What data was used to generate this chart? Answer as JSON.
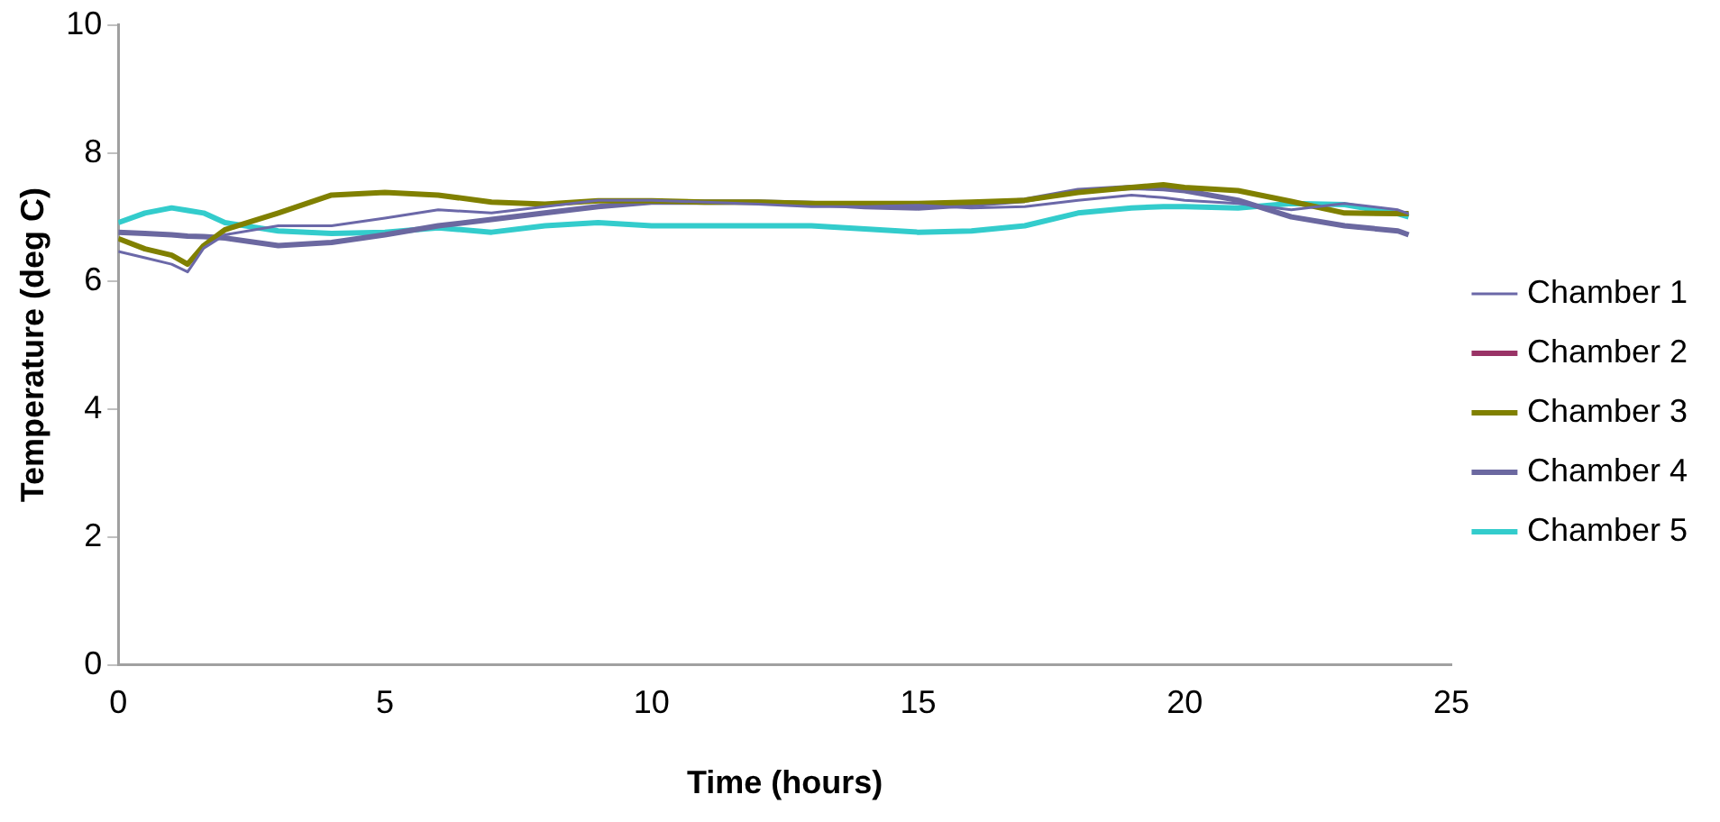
{
  "chart_data": {
    "type": "line",
    "xlabel": "Time (hours)",
    "ylabel": "Temperature (deg C)",
    "xlim": [
      0,
      25
    ],
    "ylim": [
      0,
      10
    ],
    "xticks": [
      0,
      5,
      10,
      15,
      20,
      25
    ],
    "yticks": [
      0,
      2,
      4,
      6,
      8,
      10
    ],
    "grid": false,
    "legend": "right",
    "marker": "none",
    "line_style": "solid",
    "x": [
      0,
      0.5,
      1,
      1.3,
      1.6,
      2,
      3,
      4,
      5,
      6,
      7,
      8,
      9,
      10,
      11,
      12,
      13,
      14,
      15,
      16,
      17,
      18,
      19,
      19.6,
      20,
      21,
      22,
      23,
      24,
      24.2
    ],
    "series": [
      {
        "name": "Chamber 1",
        "color": "#6b68a8",
        "values": [
          6.46,
          6.36,
          6.26,
          6.14,
          6.51,
          6.72,
          6.86,
          6.86,
          6.98,
          7.11,
          7.06,
          7.16,
          7.26,
          7.26,
          7.23,
          7.2,
          7.16,
          7.16,
          7.18,
          7.14,
          7.16,
          7.26,
          7.34,
          7.3,
          7.26,
          7.21,
          7.11,
          7.21,
          7.11,
          7.05
        ]
      },
      {
        "name": "Chamber 2",
        "color": "#993366",
        "values": [
          null,
          null,
          null,
          null,
          null,
          null,
          null,
          null,
          null,
          null,
          null,
          null,
          null,
          null,
          null,
          null,
          null,
          null,
          null,
          null,
          null,
          null,
          null,
          null,
          null,
          null,
          null,
          null,
          null,
          null
        ]
      },
      {
        "name": "Chamber 3",
        "color": "#808000",
        "values": [
          6.66,
          6.5,
          6.4,
          6.26,
          6.55,
          6.8,
          7.06,
          7.34,
          7.38,
          7.34,
          7.23,
          7.2,
          7.25,
          7.25,
          7.23,
          7.23,
          7.21,
          7.21,
          7.21,
          7.23,
          7.26,
          7.38,
          7.46,
          7.5,
          7.46,
          7.41,
          7.24,
          7.06,
          7.05,
          7.05
        ]
      },
      {
        "name": "Chamber 4",
        "color": "#6b68a0",
        "values": [
          6.76,
          6.74,
          6.72,
          6.7,
          6.69,
          6.67,
          6.55,
          6.6,
          6.72,
          6.86,
          6.96,
          7.06,
          7.16,
          7.23,
          7.23,
          7.23,
          7.21,
          7.16,
          7.14,
          7.19,
          7.26,
          7.41,
          7.46,
          7.44,
          7.41,
          7.26,
          7.0,
          6.86,
          6.78,
          6.72
        ]
      },
      {
        "name": "Chamber 5",
        "color": "#33cccc",
        "values": [
          6.91,
          7.06,
          7.14,
          7.1,
          7.06,
          6.91,
          6.78,
          6.74,
          6.76,
          6.83,
          6.76,
          6.86,
          6.91,
          6.86,
          6.86,
          6.86,
          6.86,
          6.81,
          6.76,
          6.78,
          6.86,
          7.06,
          7.14,
          7.16,
          7.16,
          7.14,
          7.21,
          7.19,
          7.05,
          7.0
        ]
      }
    ]
  }
}
